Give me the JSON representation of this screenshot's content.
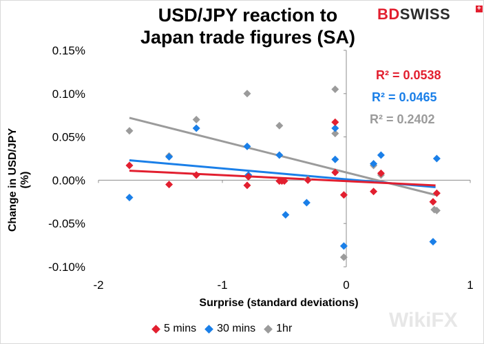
{
  "title_line1": "USD/JPY reaction to",
  "title_line2": "Japan trade figures (SA)",
  "logo": {
    "part1": "BD",
    "part2": "SWISS",
    "mark": "+"
  },
  "watermark": "WikiFX",
  "chart_data": {
    "type": "scatter",
    "xlabel": "Surprise (standard deviations)",
    "ylabel": "Change in USD/JPY (%)",
    "xlim": [
      -2,
      1
    ],
    "ylim": [
      -0.1,
      0.15
    ],
    "x_ticks": [
      "-2",
      "-1",
      "0",
      "1"
    ],
    "y_ticks": [
      "0.15%",
      "0.10%",
      "0.05%",
      "0.00%",
      "-0.05%",
      "-0.10%"
    ],
    "series": [
      {
        "name": "5 mins",
        "color": "#e21f2f",
        "r2_label": "R² = 0.0538",
        "trendline": [
          [
            -1.75,
            0.011
          ],
          [
            0.72,
            -0.006
          ]
        ],
        "points": [
          [
            -1.75,
            0.017
          ],
          [
            -1.43,
            -0.005
          ],
          [
            -1.21,
            0.006
          ],
          [
            -0.8,
            -0.006
          ],
          [
            -0.79,
            0.004
          ],
          [
            -0.54,
            -0.001
          ],
          [
            -0.52,
            -0.001
          ],
          [
            -0.5,
            -0.001
          ],
          [
            -0.31,
            0.0
          ],
          [
            -0.09,
            0.067
          ],
          [
            -0.09,
            0.009
          ],
          [
            -0.02,
            -0.017
          ],
          [
            0.22,
            -0.013
          ],
          [
            0.28,
            0.008
          ],
          [
            0.7,
            -0.025
          ],
          [
            0.73,
            -0.015
          ]
        ]
      },
      {
        "name": "30 mins",
        "color": "#1a7fe8",
        "r2_label": "R² = 0.0465",
        "trendline": [
          [
            -1.75,
            0.023
          ],
          [
            0.72,
            -0.008
          ]
        ],
        "points": [
          [
            -1.75,
            -0.02
          ],
          [
            -1.43,
            0.027
          ],
          [
            -1.21,
            0.06
          ],
          [
            -0.8,
            0.039
          ],
          [
            -0.79,
            0.006
          ],
          [
            -0.54,
            0.029
          ],
          [
            -0.49,
            -0.04
          ],
          [
            -0.32,
            -0.026
          ],
          [
            -0.09,
            0.024
          ],
          [
            -0.09,
            0.06
          ],
          [
            -0.02,
            -0.076
          ],
          [
            0.22,
            0.019
          ],
          [
            0.28,
            0.029
          ],
          [
            0.7,
            -0.071
          ],
          [
            0.73,
            0.025
          ]
        ]
      },
      {
        "name": "1hr",
        "color": "#9b9b9b",
        "r2_label": "R² = 0.2402",
        "trendline": [
          [
            -1.75,
            0.072
          ],
          [
            0.72,
            -0.017
          ]
        ],
        "points": [
          [
            -1.75,
            0.057
          ],
          [
            -1.43,
            0.028
          ],
          [
            -1.21,
            0.07
          ],
          [
            -0.8,
            0.1
          ],
          [
            -0.79,
            0.004
          ],
          [
            -0.54,
            0.063
          ],
          [
            -0.31,
            0.001
          ],
          [
            -0.09,
            0.105
          ],
          [
            -0.09,
            0.054
          ],
          [
            -0.02,
            -0.089
          ],
          [
            0.22,
            0.017
          ],
          [
            0.28,
            0.006
          ],
          [
            0.71,
            -0.034
          ],
          [
            0.73,
            -0.035
          ]
        ]
      }
    ],
    "legend": "bottom"
  }
}
